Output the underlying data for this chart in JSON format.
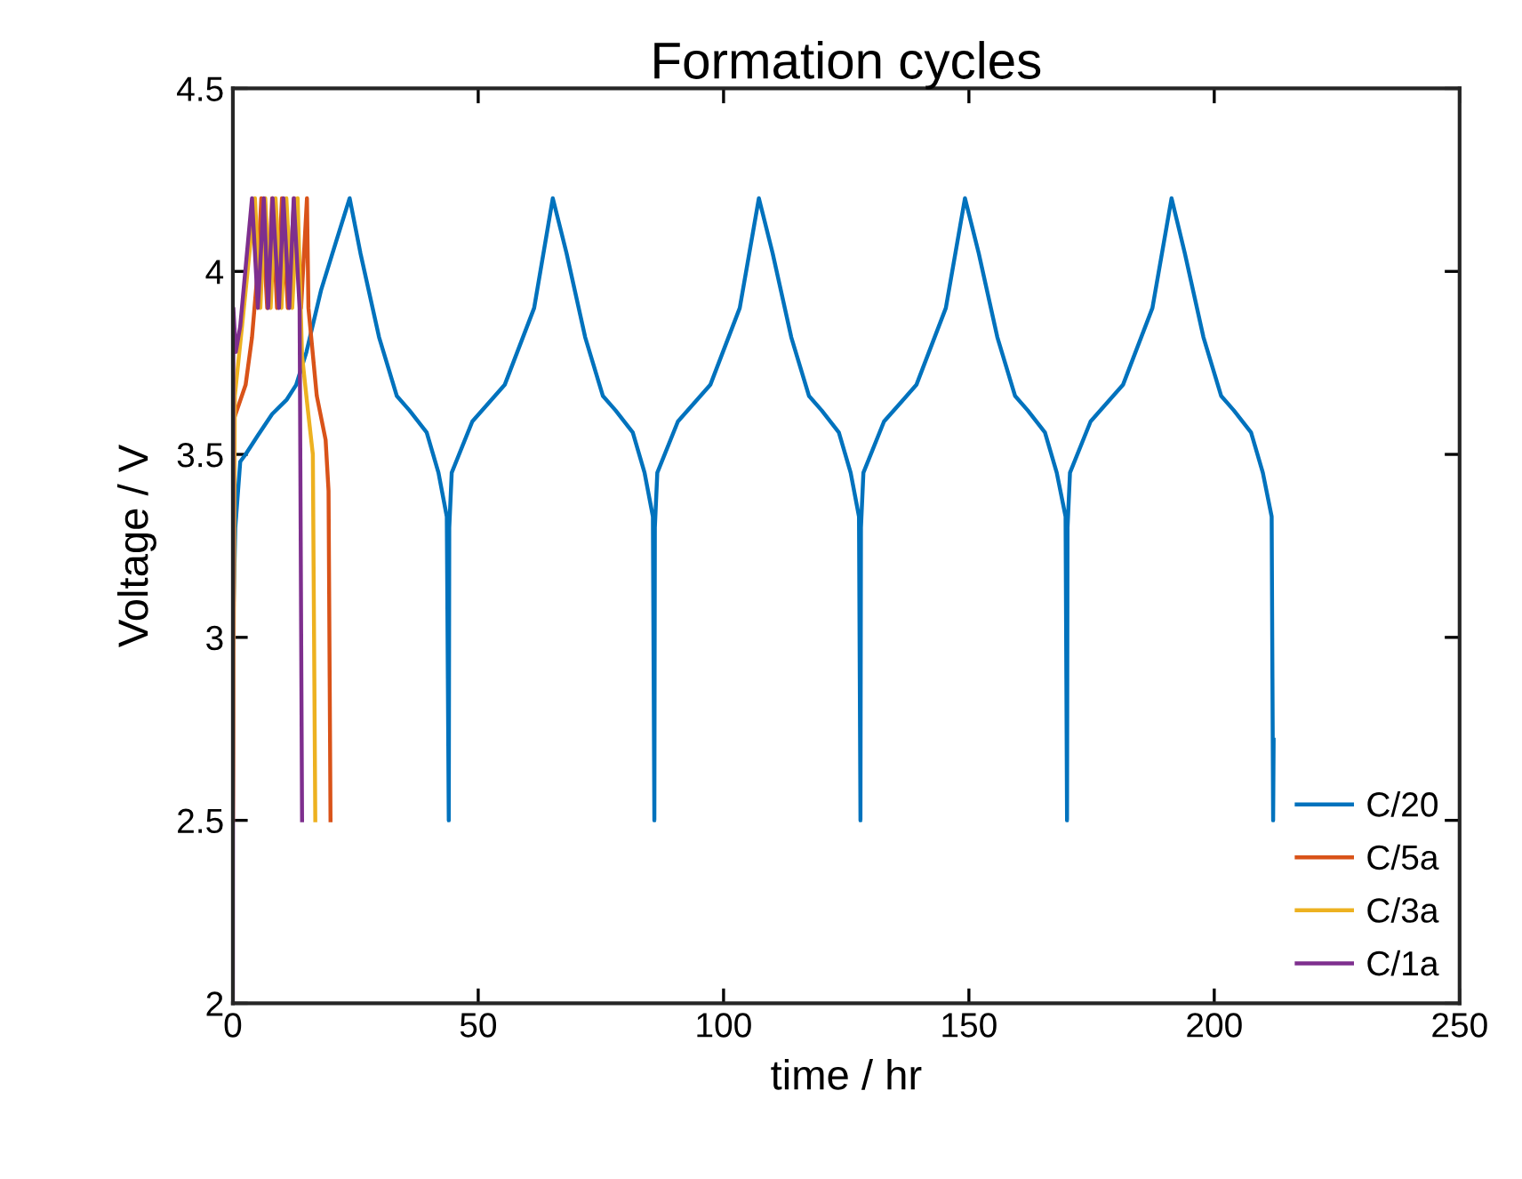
{
  "chart_data": {
    "type": "line",
    "title": "Formation cycles",
    "xlabel": "time / hr",
    "ylabel": "Voltage / V",
    "xlim": [
      0,
      250
    ],
    "ylim": [
      2,
      4.5
    ],
    "xticks": [
      0,
      50,
      100,
      150,
      200,
      250
    ],
    "yticks": [
      2,
      2.5,
      3,
      3.5,
      4,
      4.5
    ],
    "grid": false,
    "legend": "bottom right",
    "marker": "none",
    "line_style": "solid",
    "series": [
      {
        "name": "C/20",
        "color": "#0072bd",
        "x": [
          0,
          0.5,
          1.5,
          2.6,
          5,
          8,
          11,
          12.9,
          15,
          18,
          21,
          23.8,
          26,
          29.8,
          33.4,
          36,
          39.5,
          41.9,
          43.6,
          44.0,
          44.1,
          44.6,
          48.8,
          55.4,
          61.4,
          65.2,
          68,
          71.8,
          75.4,
          78,
          81.5,
          83.9,
          85.6,
          85.9,
          86.0,
          86.5,
          90.7,
          97.3,
          103.3,
          107.2,
          110,
          113.8,
          117.4,
          120,
          123.5,
          125.9,
          127.6,
          127.9,
          128.0,
          128.5,
          132.7,
          139.3,
          145.3,
          149.2,
          152,
          155.8,
          159.4,
          162,
          165.5,
          167.9,
          169.7,
          170.0,
          170.1,
          170.6,
          174.8,
          181.4,
          187.4,
          191.3,
          194,
          197.8,
          201.4,
          204,
          207.5,
          209.9,
          211.7,
          212.0,
          212.1
        ],
        "values": [
          3.0,
          3.3,
          3.48,
          3.5,
          3.55,
          3.61,
          3.65,
          3.69,
          3.78,
          3.95,
          4.08,
          4.2,
          4.05,
          3.82,
          3.66,
          3.62,
          3.56,
          3.45,
          3.33,
          2.5,
          3.3,
          3.45,
          3.59,
          3.69,
          3.9,
          4.2,
          4.05,
          3.82,
          3.66,
          3.62,
          3.56,
          3.45,
          3.33,
          2.5,
          3.3,
          3.45,
          3.59,
          3.69,
          3.9,
          4.2,
          4.05,
          3.82,
          3.66,
          3.62,
          3.56,
          3.45,
          3.33,
          2.5,
          3.3,
          3.45,
          3.59,
          3.69,
          3.9,
          4.2,
          4.05,
          3.82,
          3.66,
          3.62,
          3.56,
          3.45,
          3.33,
          2.5,
          3.3,
          3.45,
          3.59,
          3.69,
          3.9,
          4.2,
          4.05,
          3.82,
          3.66,
          3.62,
          3.56,
          3.45,
          3.33,
          2.5,
          2.72
        ]
      },
      {
        "name": "C/5a",
        "color": "#d95319",
        "x": [
          0,
          0.3,
          2.6,
          3.9,
          5.1,
          5.8,
          7.0,
          8.0,
          9.0,
          10.0,
          11.2,
          12.5,
          13.9,
          15.1,
          15.4,
          17.1,
          18.9,
          19.5,
          19.9
        ],
        "values": [
          2.5,
          3.6,
          3.69,
          3.82,
          4.01,
          4.2,
          3.9,
          4.2,
          3.9,
          4.2,
          3.9,
          4.2,
          3.9,
          4.2,
          3.9,
          3.66,
          3.54,
          3.4,
          2.5
        ]
      },
      {
        "name": "C/3a",
        "color": "#edb120",
        "x": [
          0,
          0.4,
          2.1,
          4.5,
          5.6,
          6.6,
          7.7,
          8.7,
          9.9,
          10.9,
          12.1,
          13.2,
          14.1,
          15.3,
          16.3,
          16.8
        ],
        "values": [
          2.5,
          3.66,
          3.88,
          4.2,
          3.9,
          4.2,
          3.9,
          4.2,
          3.9,
          4.2,
          3.9,
          4.2,
          3.77,
          3.62,
          3.5,
          2.5
        ]
      },
      {
        "name": "C/1a",
        "color": "#7e2f8e",
        "x": [
          0,
          0.1,
          0.6,
          1.5,
          3.9,
          5.1,
          6.3,
          7.2,
          8.1,
          9.4,
          10.3,
          11.5,
          12.4,
          13.6,
          14.1
        ],
        "values": [
          2.0,
          3.9,
          3.78,
          3.85,
          4.2,
          3.9,
          4.2,
          3.9,
          4.2,
          3.9,
          4.2,
          3.9,
          4.2,
          3.9,
          2.5
        ]
      }
    ]
  }
}
